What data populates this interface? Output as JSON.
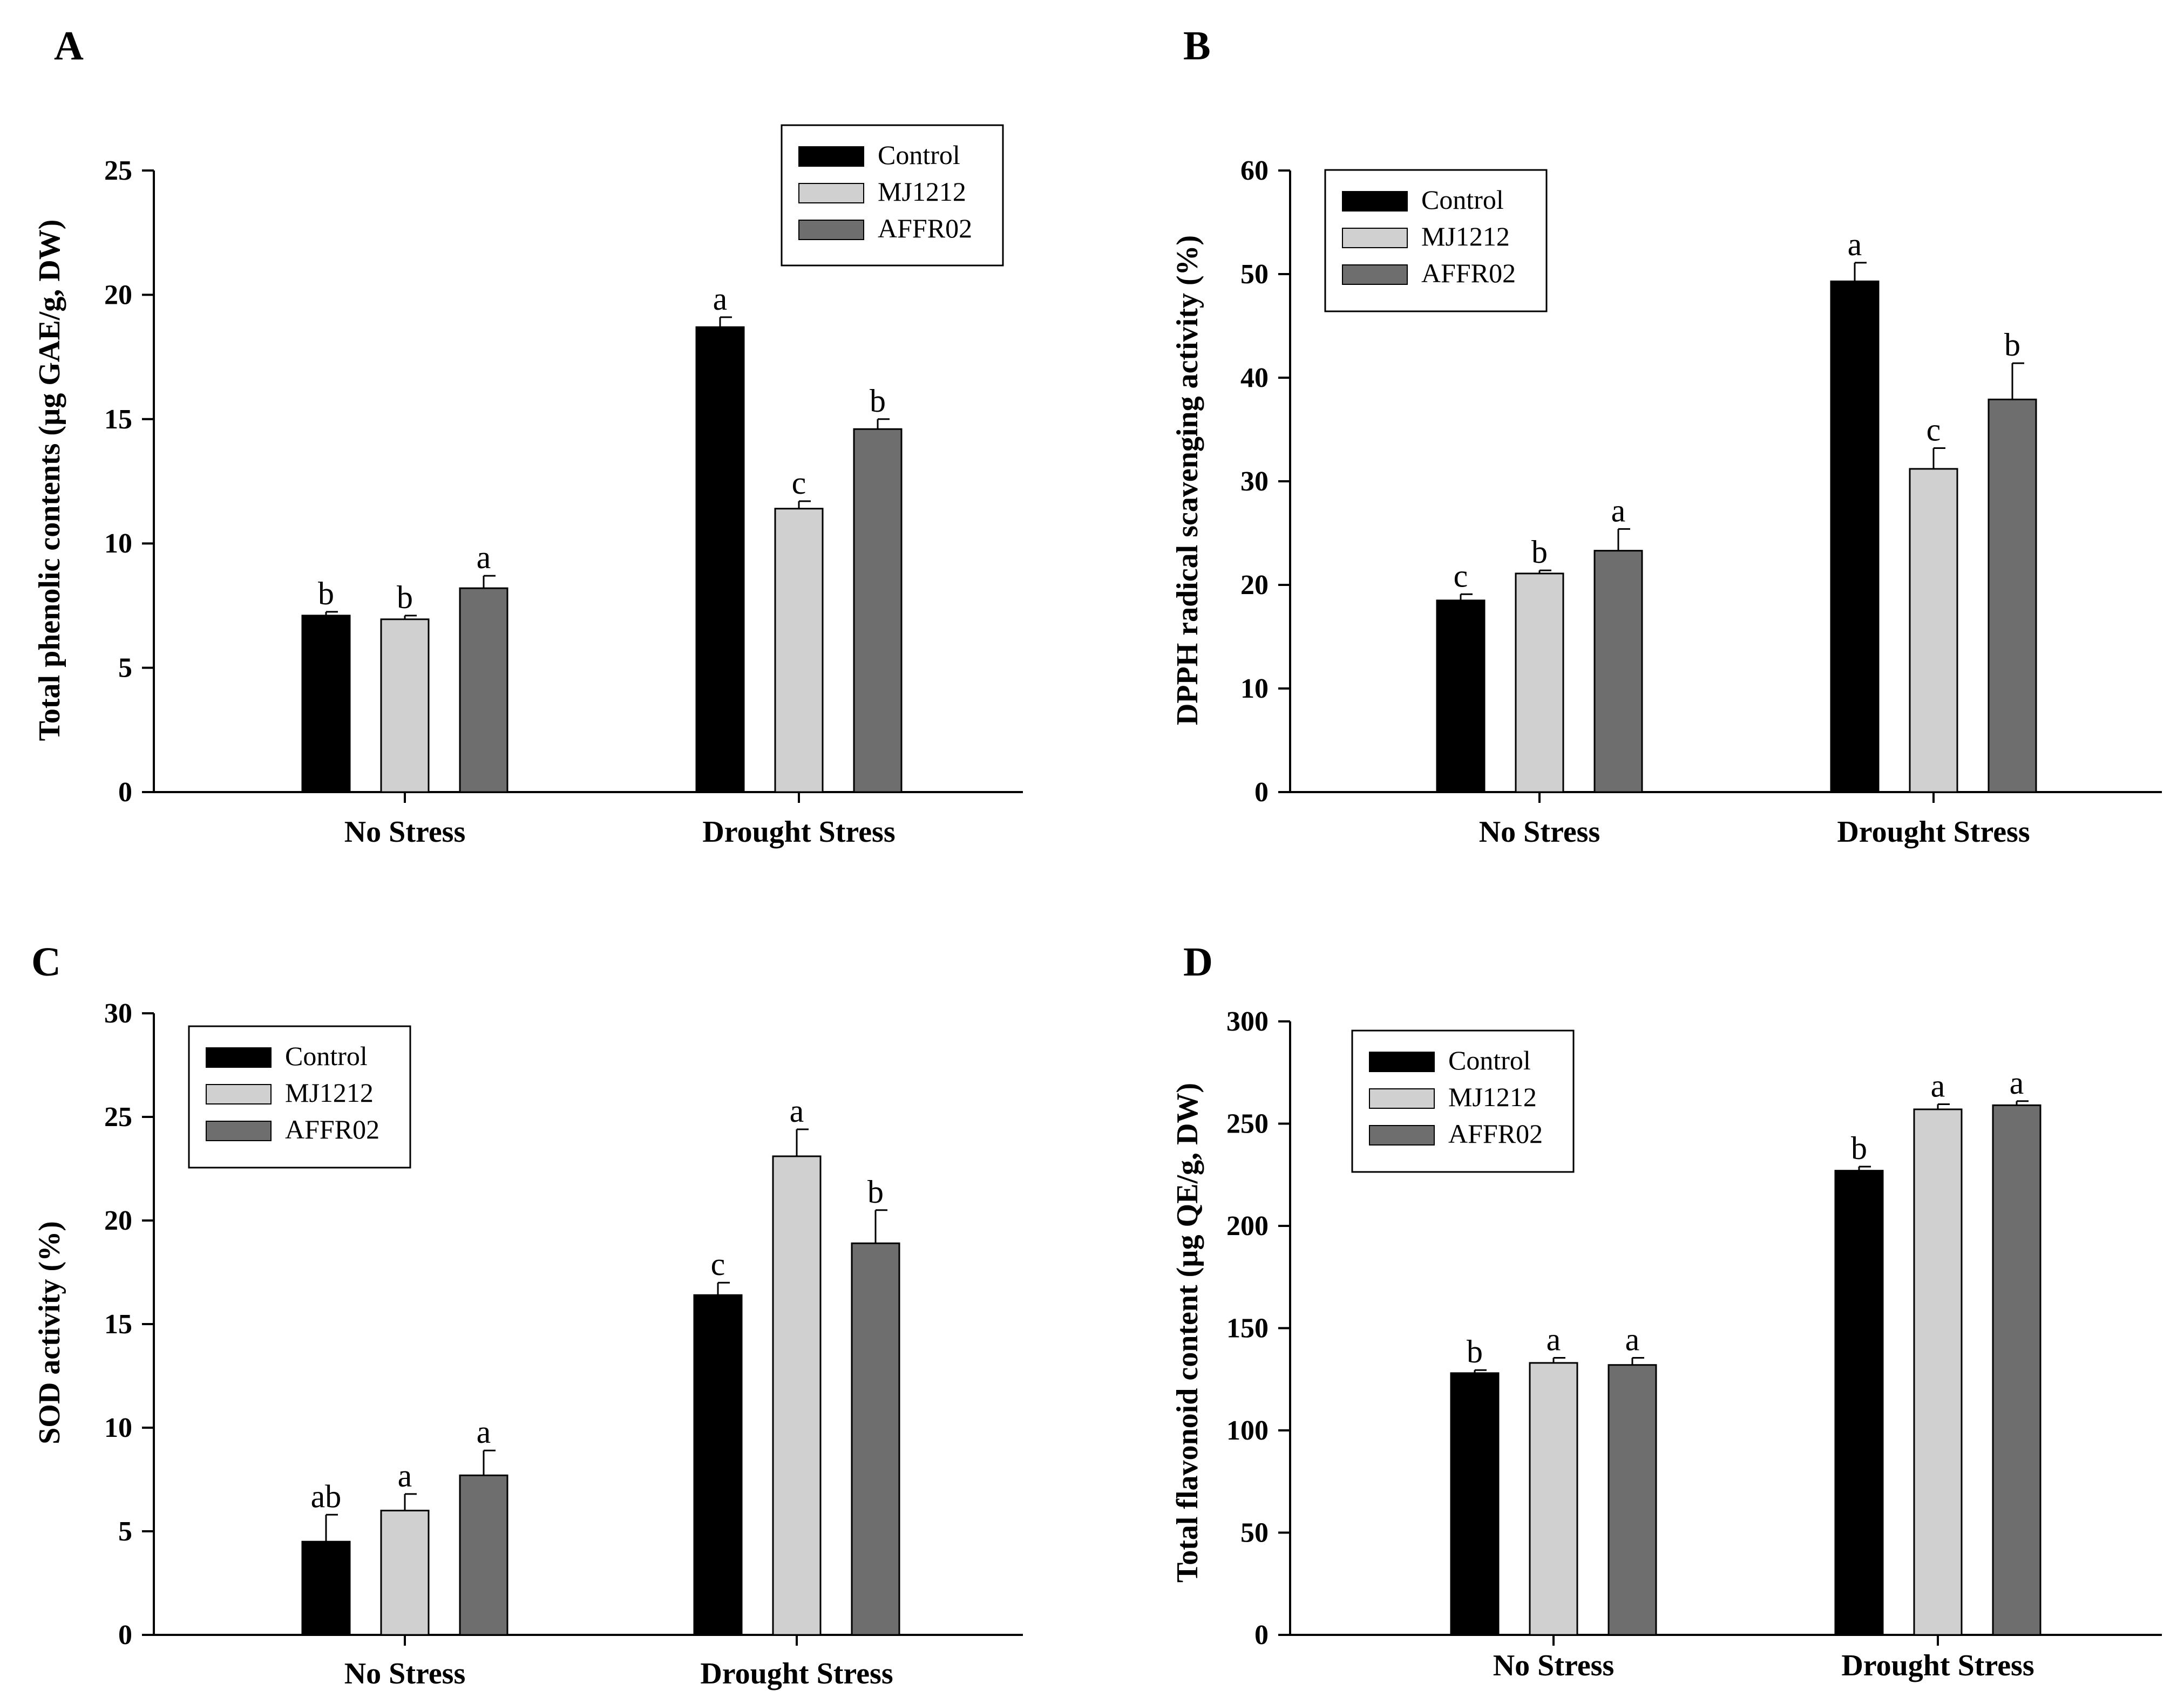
{
  "figure": {
    "groups": [
      "No Stress",
      "Drought Stress"
    ],
    "legend": [
      "Control",
      "MJ1212",
      "AFFR02"
    ],
    "colors": {
      "Control": "#000000",
      "MJ1212": "#d0d0d0",
      "AFFR02": "#6e6e6e"
    }
  },
  "chart_data": [
    {
      "panel": "A",
      "type": "bar",
      "ylabel": "Total phenolic contents  (µg GAE/g, DW)",
      "ylim": [
        0,
        25
      ],
      "yticks": [
        0,
        5,
        10,
        15,
        20,
        25
      ],
      "categories": [
        "No Stress",
        "Drought Stress"
      ],
      "legend_position": "top-right",
      "series": [
        {
          "name": "Control",
          "values": [
            7.1,
            18.7
          ],
          "errors": [
            0.15,
            0.4
          ],
          "letters": [
            "b",
            "a"
          ]
        },
        {
          "name": "MJ1212",
          "values": [
            6.95,
            11.4
          ],
          "errors": [
            0.15,
            0.3
          ],
          "letters": [
            "b",
            "c"
          ]
        },
        {
          "name": "AFFR02",
          "values": [
            8.2,
            14.6
          ],
          "errors": [
            0.5,
            0.4
          ],
          "letters": [
            "a",
            "b"
          ]
        }
      ]
    },
    {
      "panel": "B",
      "type": "bar",
      "ylabel": "DPPH radical scavenging activity (%)",
      "ylim": [
        0,
        60
      ],
      "yticks": [
        0,
        10,
        20,
        30,
        40,
        50,
        60
      ],
      "categories": [
        "No Stress",
        "Drought Stress"
      ],
      "legend_position": "top-left",
      "series": [
        {
          "name": "Control",
          "values": [
            18.5,
            49.3
          ],
          "errors": [
            0.6,
            1.8
          ],
          "letters": [
            "c",
            "a"
          ]
        },
        {
          "name": "MJ1212",
          "values": [
            21.1,
            31.2
          ],
          "errors": [
            0.3,
            2.0
          ],
          "letters": [
            "b",
            "c"
          ]
        },
        {
          "name": "AFFR02",
          "values": [
            23.3,
            37.9
          ],
          "errors": [
            2.1,
            3.5
          ],
          "letters": [
            "a",
            "b"
          ]
        }
      ]
    },
    {
      "panel": "C",
      "type": "bar",
      "ylabel": "SOD activity (%)",
      "ylim": [
        0,
        30
      ],
      "yticks": [
        0,
        5,
        10,
        15,
        20,
        25,
        30
      ],
      "categories": [
        "No Stress",
        "Drought Stress"
      ],
      "legend_position": "top-left",
      "series": [
        {
          "name": "Control",
          "values": [
            4.5,
            16.4
          ],
          "errors": [
            1.3,
            0.6
          ],
          "letters": [
            "ab",
            "c"
          ]
        },
        {
          "name": "MJ1212",
          "values": [
            6.0,
            23.1
          ],
          "errors": [
            0.8,
            1.3
          ],
          "letters": [
            "a",
            "a"
          ]
        },
        {
          "name": "AFFR02",
          "values": [
            7.7,
            18.9
          ],
          "errors": [
            1.2,
            1.6
          ],
          "letters": [
            "a",
            "b"
          ]
        }
      ]
    },
    {
      "panel": "D",
      "type": "bar",
      "ylabel": "Total flavonoid content (µg QE/g, DW)",
      "ylim": [
        0,
        300
      ],
      "yticks": [
        0,
        50,
        100,
        150,
        200,
        250,
        300
      ],
      "categories": [
        "No Stress",
        "Drought Stress"
      ],
      "legend_position": "top-left",
      "series": [
        {
          "name": "Control",
          "values": [
            128,
            227
          ],
          "errors": [
            1.5,
            2
          ],
          "letters": [
            "b",
            "b"
          ]
        },
        {
          "name": "MJ1212",
          "values": [
            133,
            257
          ],
          "errors": [
            2.5,
            2.5
          ],
          "letters": [
            "a",
            "a"
          ]
        },
        {
          "name": "AFFR02",
          "values": [
            132,
            259
          ],
          "errors": [
            3.5,
            2
          ],
          "letters": [
            "a",
            "a"
          ]
        }
      ]
    }
  ]
}
